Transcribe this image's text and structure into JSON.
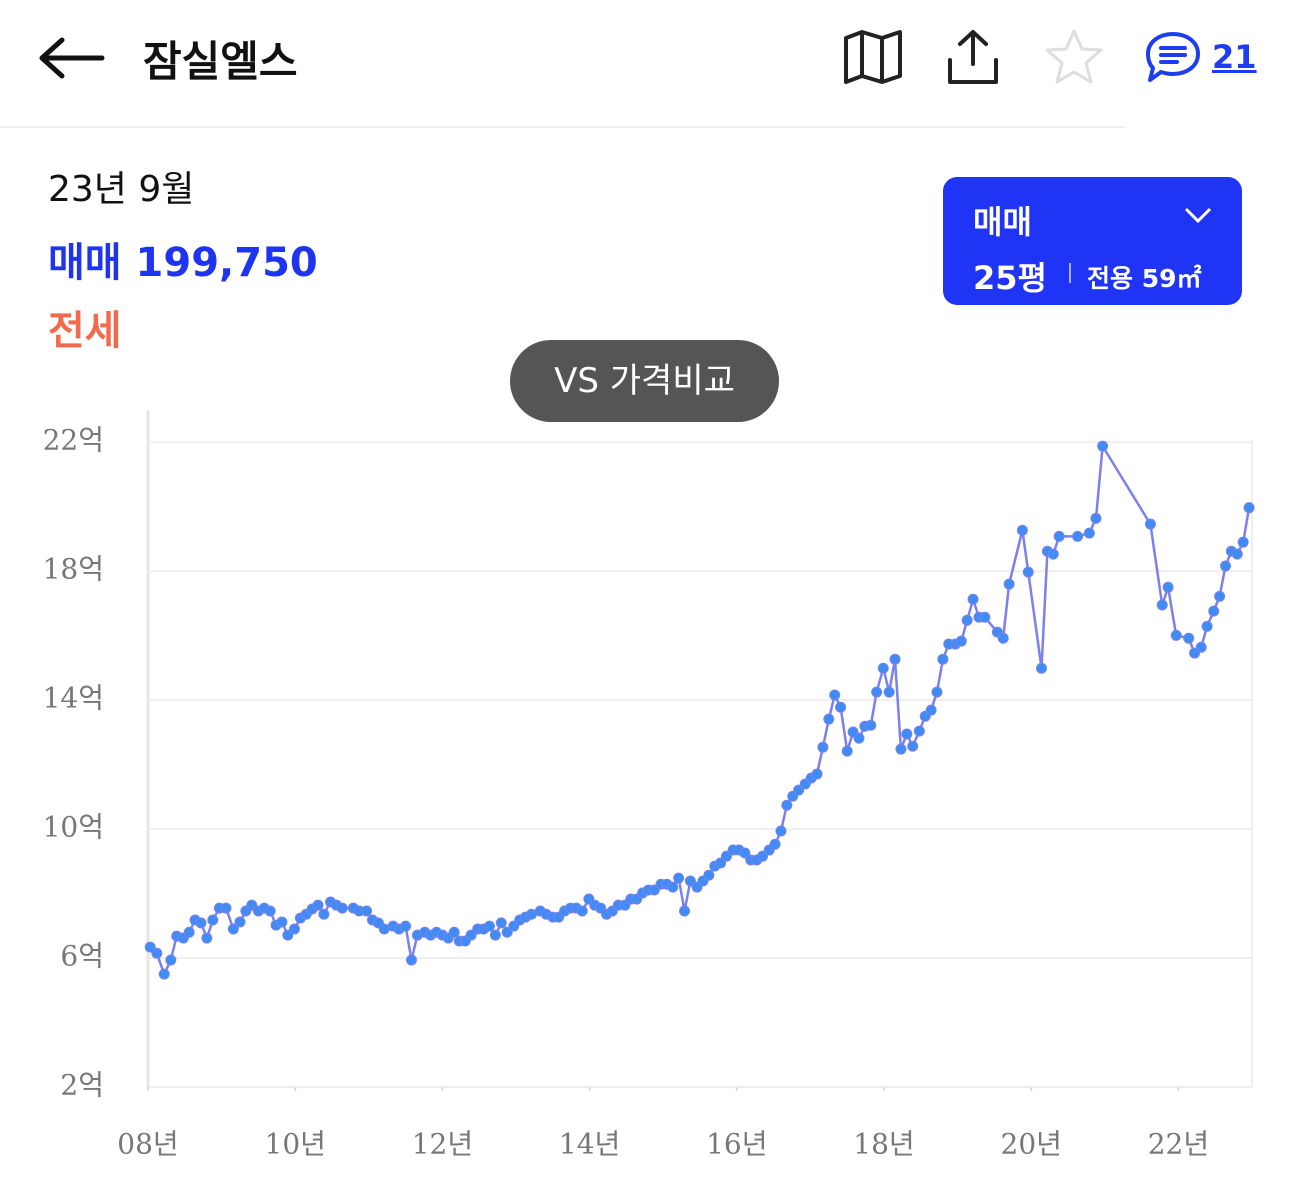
{
  "header": {
    "title": "잠실엘스",
    "comment_count": "21"
  },
  "summary": {
    "date": "23년 9월",
    "trade_label": "매매",
    "trade_price": "199,750",
    "jeonse_label": "전세"
  },
  "selector": {
    "deal_type": "매매",
    "size": "25평",
    "area": "전용 59㎡"
  },
  "compare_button": "VS 가격비교",
  "chart_data": {
    "type": "line",
    "color": "#7b80ec",
    "marker_color": "#3f8cf5",
    "grid": true,
    "xlim": [
      2008,
      2023
    ],
    "xticks": [
      {
        "value": 2008,
        "label": "08년"
      },
      {
        "value": 2010,
        "label": "10년"
      },
      {
        "value": 2012,
        "label": "12년"
      },
      {
        "value": 2014,
        "label": "14년"
      },
      {
        "value": 2016,
        "label": "16년"
      },
      {
        "value": 2018,
        "label": "18년"
      },
      {
        "value": 2020,
        "label": "20년"
      },
      {
        "value": 2022,
        "label": "22년"
      }
    ],
    "ylim": [
      2,
      23
    ],
    "yticks": [
      {
        "value": 2,
        "label": "2억"
      },
      {
        "value": 6,
        "label": "6억"
      },
      {
        "value": 10,
        "label": "10억"
      },
      {
        "value": 14,
        "label": "14억"
      },
      {
        "value": 18,
        "label": "18억"
      },
      {
        "value": 22,
        "label": "22억"
      }
    ],
    "x": [
      2008.03,
      2008.12,
      2008.22,
      2008.31,
      2008.39,
      2008.48,
      2008.56,
      2008.64,
      2008.72,
      2008.8,
      2008.88,
      2008.97,
      2009.06,
      2009.16,
      2009.25,
      2009.33,
      2009.41,
      2009.5,
      2009.58,
      2009.66,
      2009.74,
      2009.82,
      2009.9,
      2009.99,
      2010.07,
      2010.15,
      2010.23,
      2010.31,
      2010.39,
      2010.48,
      2010.56,
      2010.64,
      2010.79,
      2010.87,
      2010.97,
      2011.05,
      2011.13,
      2011.21,
      2011.33,
      2011.41,
      2011.5,
      2011.58,
      2011.66,
      2011.76,
      2011.84,
      2011.92,
      2012.0,
      2012.08,
      2012.16,
      2012.23,
      2012.31,
      2012.39,
      2012.48,
      2012.56,
      2012.64,
      2012.72,
      2012.8,
      2012.88,
      2012.97,
      2013.05,
      2013.13,
      2013.21,
      2013.33,
      2013.41,
      2013.5,
      2013.58,
      2013.66,
      2013.74,
      2013.82,
      2013.9,
      2013.99,
      2014.07,
      2014.15,
      2014.23,
      2014.31,
      2014.39,
      2014.48,
      2014.56,
      2014.64,
      2014.72,
      2014.8,
      2014.88,
      2014.97,
      2015.05,
      2015.13,
      2015.21,
      2015.29,
      2015.37,
      2015.46,
      2015.54,
      2015.62,
      2015.7,
      2015.78,
      2015.86,
      2015.95,
      2016.03,
      2016.11,
      2016.19,
      2016.27,
      2016.35,
      2016.44,
      2016.52,
      2016.6,
      2016.68,
      2016.76,
      2016.84,
      2016.93,
      2017.01,
      2017.09,
      2017.17,
      2017.25,
      2017.33,
      2017.41,
      2017.5,
      2017.58,
      2017.66,
      2017.74,
      2017.82,
      2017.9,
      2017.99,
      2018.07,
      2018.15,
      2018.23,
      2018.31,
      2018.39,
      2018.48,
      2018.56,
      2018.64,
      2018.72,
      2018.8,
      2018.88,
      2018.97,
      2019.05,
      2019.13,
      2019.21,
      2019.29,
      2019.37,
      2019.54,
      2019.62,
      2019.7,
      2019.88,
      2019.96,
      2020.14,
      2020.22,
      2020.3,
      2020.38,
      2020.63,
      2020.79,
      2020.88,
      2020.97,
      2021.62,
      2021.78,
      2021.86,
      2021.97,
      2022.14,
      2022.22,
      2022.31,
      2022.39,
      2022.48,
      2022.56,
      2022.64,
      2022.72,
      2022.8,
      2022.88,
      2022.96
    ],
    "values": [
      6.34,
      6.15,
      5.5,
      5.94,
      6.68,
      6.62,
      6.8,
      7.18,
      7.09,
      6.62,
      7.18,
      7.55,
      7.55,
      6.9,
      7.12,
      7.46,
      7.64,
      7.46,
      7.55,
      7.46,
      7.02,
      7.12,
      6.71,
      6.9,
      7.24,
      7.36,
      7.52,
      7.64,
      7.36,
      7.74,
      7.64,
      7.55,
      7.55,
      7.46,
      7.46,
      7.18,
      7.09,
      6.9,
      6.99,
      6.9,
      6.99,
      5.94,
      6.71,
      6.8,
      6.71,
      6.8,
      6.71,
      6.62,
      6.8,
      6.53,
      6.53,
      6.71,
      6.9,
      6.9,
      6.99,
      6.71,
      7.09,
      6.8,
      6.99,
      7.18,
      7.27,
      7.36,
      7.46,
      7.36,
      7.27,
      7.27,
      7.46,
      7.55,
      7.55,
      7.46,
      7.83,
      7.64,
      7.55,
      7.36,
      7.46,
      7.64,
      7.64,
      7.83,
      7.83,
      8.02,
      8.11,
      8.11,
      8.29,
      8.29,
      8.2,
      8.48,
      7.46,
      8.39,
      8.2,
      8.39,
      8.57,
      8.85,
      8.95,
      9.16,
      9.35,
      9.35,
      9.26,
      9.04,
      9.04,
      9.16,
      9.35,
      9.53,
      9.94,
      10.74,
      11.02,
      11.21,
      11.4,
      11.58,
      11.71,
      12.54,
      13.41,
      14.16,
      13.78,
      12.42,
      13.01,
      12.82,
      13.19,
      13.22,
      14.25,
      14.99,
      14.25,
      15.27,
      12.48,
      12.95,
      12.57,
      13.04,
      13.5,
      13.69,
      14.25,
      15.27,
      15.74,
      15.74,
      15.83,
      16.48,
      17.13,
      16.57,
      16.57,
      16.11,
      15.92,
      17.6,
      19.27,
      17.97,
      14.99,
      18.62,
      18.53,
      19.08,
      19.08,
      19.18,
      19.64,
      21.88,
      19.46,
      16.95,
      17.5,
      16.01,
      15.92,
      15.46,
      15.64,
      16.29,
      16.76,
      17.22,
      18.16,
      18.62,
      18.53,
      18.9,
      19.97
    ]
  }
}
